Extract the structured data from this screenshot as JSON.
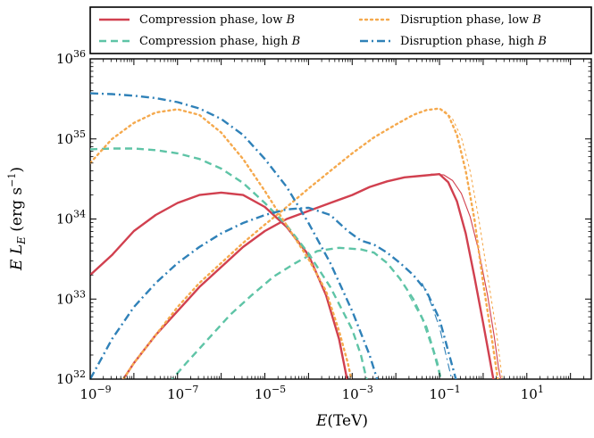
{
  "chart_data": {
    "type": "line",
    "title": "",
    "xlabel": "E(TeV)",
    "ylabel": "E L_E (erg s^-1)",
    "xscale": "log",
    "yscale": "log",
    "xlim": [
      1e-09,
      300
    ],
    "ylim": [
      1e+32,
      1e+36
    ],
    "x_ticks": [
      {
        "exp": -9,
        "label_base": "10",
        "label_exp": "−9"
      },
      {
        "exp": -7,
        "label_base": "10",
        "label_exp": "−7"
      },
      {
        "exp": -5,
        "label_base": "10",
        "label_exp": "−5"
      },
      {
        "exp": -3,
        "label_base": "10",
        "label_exp": "−3"
      },
      {
        "exp": -1,
        "label_base": "10",
        "label_exp": "−1"
      },
      {
        "exp": 1,
        "label_base": "10",
        "label_exp": "1"
      }
    ],
    "y_ticks": [
      {
        "exp": 32,
        "label_base": "10",
        "label_exp": "32"
      },
      {
        "exp": 33,
        "label_base": "10",
        "label_exp": "33"
      },
      {
        "exp": 34,
        "label_base": "10",
        "label_exp": "34"
      },
      {
        "exp": 35,
        "label_base": "10",
        "label_exp": "35"
      },
      {
        "exp": 36,
        "label_base": "10",
        "label_exp": "36"
      }
    ],
    "axis_labels": {
      "x_italic": "E",
      "x_rest": "(TeV)",
      "y_part1": "E L",
      "y_sub": "E",
      "y_part2": " (erg s",
      "y_sup": "−1",
      "y_part3": ")"
    },
    "legend": {
      "placement": "above plot",
      "entries": [
        {
          "text": "Compression phase, low ",
          "italic": "B",
          "color": "#d1404f",
          "dash": "solid"
        },
        {
          "text": "Compression phase, high ",
          "italic": "B",
          "color": "#5ec4a6",
          "dash": "dashed"
        },
        {
          "text": "Disruption phase, low ",
          "italic": "B",
          "color": "#f5a94d",
          "dash": "dotted"
        },
        {
          "text": "Disruption phase, high ",
          "italic": "B",
          "color": "#2f81b8",
          "dash": "dashdot"
        }
      ]
    },
    "grid": false,
    "series": [
      {
        "name": "Compression phase, low B",
        "color": "#d1404f",
        "dash": "solid",
        "width": 2.4,
        "points": [
          [
            -9,
            33.3
          ],
          [
            -8.5,
            33.55
          ],
          [
            -8,
            33.85
          ],
          [
            -7.5,
            34.05
          ],
          [
            -7,
            34.2
          ],
          [
            -6.5,
            34.3
          ],
          [
            -6,
            34.33
          ],
          [
            -5.5,
            34.3
          ],
          [
            -5,
            34.15
          ],
          [
            -4.5,
            33.9
          ],
          [
            -4,
            33.55
          ],
          [
            -3.6,
            33.05
          ],
          [
            -3.3,
            32.5
          ],
          [
            -3.1,
            31.95
          ]
        ]
      },
      {
        "color": "#d1404f",
        "dash": "solid",
        "width": 2.4,
        "points": [
          [
            -8.3,
            31.95
          ],
          [
            -8,
            32.2
          ],
          [
            -7.5,
            32.55
          ],
          [
            -7,
            32.85
          ],
          [
            -6.5,
            33.15
          ],
          [
            -6,
            33.4
          ],
          [
            -5.5,
            33.65
          ],
          [
            -5,
            33.85
          ],
          [
            -4.5,
            34.0
          ],
          [
            -4,
            34.1
          ],
          [
            -3.5,
            34.2
          ],
          [
            -3,
            34.3
          ],
          [
            -2.6,
            34.4
          ],
          [
            -2.2,
            34.47
          ],
          [
            -1.8,
            34.52
          ],
          [
            -1.4,
            34.54
          ],
          [
            -1,
            34.56
          ],
          [
            -0.8,
            34.46
          ],
          [
            -0.6,
            34.22
          ],
          [
            -0.4,
            33.82
          ],
          [
            -0.2,
            33.28
          ],
          [
            0,
            32.7
          ],
          [
            0.15,
            32.25
          ],
          [
            0.25,
            31.95
          ]
        ]
      },
      {
        "color": "#d1404f",
        "dash": "solid",
        "width": 1.1,
        "points": [
          [
            -1.2,
            34.56
          ],
          [
            -0.9,
            34.55
          ],
          [
            -0.7,
            34.48
          ],
          [
            -0.5,
            34.32
          ],
          [
            -0.3,
            34.03
          ],
          [
            -0.1,
            33.6
          ],
          [
            0.1,
            33.05
          ],
          [
            0.25,
            32.55
          ],
          [
            0.35,
            32.15
          ],
          [
            0.42,
            31.95
          ]
        ]
      },
      {
        "name": "Compression phase, high B",
        "color": "#5ec4a6",
        "dash": "dashed",
        "width": 2.4,
        "points": [
          [
            -9,
            34.87
          ],
          [
            -8.5,
            34.88
          ],
          [
            -8,
            34.88
          ],
          [
            -7.5,
            34.86
          ],
          [
            -7,
            34.82
          ],
          [
            -6.5,
            34.75
          ],
          [
            -6,
            34.63
          ],
          [
            -5.5,
            34.45
          ],
          [
            -5,
            34.2
          ],
          [
            -4.5,
            33.92
          ],
          [
            -4,
            33.57
          ],
          [
            -3.5,
            33.15
          ],
          [
            -3,
            32.62
          ],
          [
            -2.8,
            32.3
          ],
          [
            -2.65,
            31.95
          ]
        ]
      },
      {
        "color": "#5ec4a6",
        "dash": "dashed",
        "width": 2.4,
        "points": [
          [
            -7.2,
            31.95
          ],
          [
            -6.8,
            32.2
          ],
          [
            -6.3,
            32.5
          ],
          [
            -5.8,
            32.8
          ],
          [
            -5.3,
            33.05
          ],
          [
            -4.8,
            33.28
          ],
          [
            -4.3,
            33.45
          ],
          [
            -3.8,
            33.6
          ],
          [
            -3.3,
            33.64
          ],
          [
            -2.8,
            33.62
          ],
          [
            -2.5,
            33.58
          ],
          [
            -2.2,
            33.45
          ],
          [
            -1.9,
            33.25
          ],
          [
            -1.6,
            33.0
          ],
          [
            -1.3,
            32.65
          ],
          [
            -1.05,
            32.2
          ],
          [
            -0.95,
            31.95
          ]
        ]
      },
      {
        "color": "#5ec4a6",
        "dash": "dashed",
        "width": 1.1,
        "points": [
          [
            -1.7,
            33.05
          ],
          [
            -1.4,
            32.75
          ],
          [
            -1.15,
            32.35
          ],
          [
            -1.0,
            32.05
          ],
          [
            -0.95,
            31.95
          ]
        ]
      },
      {
        "name": "Disruption phase, low B",
        "color": "#f5a94d",
        "dash": "dotted",
        "width": 2.4,
        "points": [
          [
            -9,
            34.7
          ],
          [
            -8.5,
            35.0
          ],
          [
            -8,
            35.2
          ],
          [
            -7.5,
            35.33
          ],
          [
            -7,
            35.37
          ],
          [
            -6.5,
            35.3
          ],
          [
            -6,
            35.08
          ],
          [
            -5.5,
            34.75
          ],
          [
            -5,
            34.35
          ],
          [
            -4.5,
            33.92
          ],
          [
            -4,
            33.5
          ],
          [
            -3.6,
            33.1
          ],
          [
            -3.3,
            32.6
          ],
          [
            -3.1,
            32.2
          ],
          [
            -3.0,
            31.95
          ]
        ]
      },
      {
        "color": "#f5a94d",
        "dash": "dotted",
        "width": 2.4,
        "points": [
          [
            -8.3,
            31.95
          ],
          [
            -8,
            32.2
          ],
          [
            -7.5,
            32.55
          ],
          [
            -7,
            32.9
          ],
          [
            -6.5,
            33.2
          ],
          [
            -6,
            33.45
          ],
          [
            -5.5,
            33.7
          ],
          [
            -5,
            33.93
          ],
          [
            -4.5,
            34.15
          ],
          [
            -4,
            34.38
          ],
          [
            -3.5,
            34.6
          ],
          [
            -3,
            34.82
          ],
          [
            -2.5,
            35.02
          ],
          [
            -2,
            35.18
          ],
          [
            -1.6,
            35.3
          ],
          [
            -1.3,
            35.36
          ],
          [
            -1,
            35.38
          ],
          [
            -0.8,
            35.3
          ],
          [
            -0.6,
            35.05
          ],
          [
            -0.4,
            34.6
          ],
          [
            -0.2,
            34.0
          ],
          [
            0,
            33.2
          ],
          [
            0.2,
            32.5
          ],
          [
            0.35,
            31.95
          ]
        ]
      },
      {
        "color": "#f5a94d",
        "dash": "dotted",
        "width": 1.1,
        "points": [
          [
            -1.1,
            35.38
          ],
          [
            -0.9,
            35.36
          ],
          [
            -0.7,
            35.25
          ],
          [
            -0.5,
            35.02
          ],
          [
            -0.3,
            34.6
          ],
          [
            -0.1,
            34.0
          ],
          [
            0.1,
            33.3
          ],
          [
            0.3,
            32.6
          ],
          [
            0.45,
            31.95
          ]
        ]
      },
      {
        "name": "Disruption phase, high B",
        "color": "#2f81b8",
        "dash": "dashdot",
        "width": 2.4,
        "points": [
          [
            -9,
            35.57
          ],
          [
            -8.5,
            35.56
          ],
          [
            -8,
            35.54
          ],
          [
            -7.5,
            35.51
          ],
          [
            -7,
            35.46
          ],
          [
            -6.5,
            35.38
          ],
          [
            -6,
            35.25
          ],
          [
            -5.5,
            35.05
          ],
          [
            -5,
            34.75
          ],
          [
            -4.5,
            34.4
          ],
          [
            -4,
            33.95
          ],
          [
            -3.5,
            33.45
          ],
          [
            -3,
            32.85
          ],
          [
            -2.6,
            32.3
          ],
          [
            -2.4,
            31.95
          ]
        ]
      },
      {
        "color": "#2f81b8",
        "dash": "dashdot",
        "width": 2.4,
        "points": [
          [
            -9,
            32.0
          ],
          [
            -8.5,
            32.5
          ],
          [
            -8,
            32.9
          ],
          [
            -7.5,
            33.2
          ],
          [
            -7,
            33.45
          ],
          [
            -6.5,
            33.65
          ],
          [
            -6,
            33.82
          ],
          [
            -5.5,
            33.95
          ],
          [
            -5,
            34.05
          ],
          [
            -4.5,
            34.12
          ],
          [
            -4,
            34.14
          ],
          [
            -3.5,
            34.05
          ],
          [
            -3.1,
            33.85
          ],
          [
            -2.8,
            33.73
          ],
          [
            -2.5,
            33.68
          ],
          [
            -2.2,
            33.58
          ],
          [
            -1.9,
            33.45
          ],
          [
            -1.6,
            33.3
          ],
          [
            -1.3,
            33.1
          ],
          [
            -1.0,
            32.75
          ],
          [
            -0.8,
            32.35
          ],
          [
            -0.6,
            31.95
          ]
        ]
      },
      {
        "color": "#2f81b8",
        "dash": "dashdot",
        "width": 1.1,
        "points": [
          [
            -1.4,
            33.2
          ],
          [
            -1.2,
            32.95
          ],
          [
            -1.0,
            32.65
          ],
          [
            -0.85,
            32.3
          ],
          [
            -0.7,
            31.95
          ]
        ]
      }
    ]
  }
}
